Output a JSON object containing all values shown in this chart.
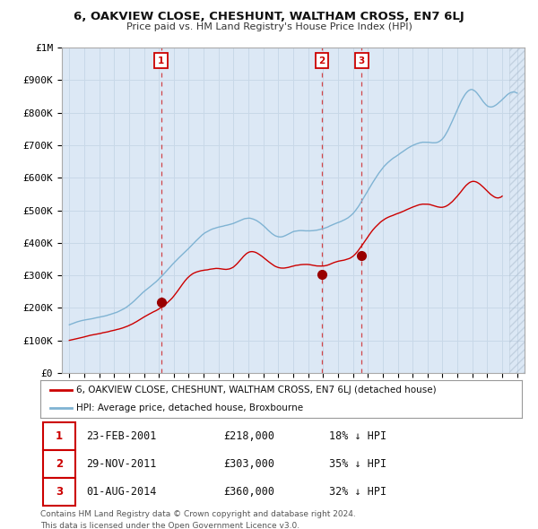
{
  "title": "6, OAKVIEW CLOSE, CHESHUNT, WALTHAM CROSS, EN7 6LJ",
  "subtitle": "Price paid vs. HM Land Registry's House Price Index (HPI)",
  "legend_line1": "6, OAKVIEW CLOSE, CHESHUNT, WALTHAM CROSS, EN7 6LJ (detached house)",
  "legend_line2": "HPI: Average price, detached house, Broxbourne",
  "footer1": "Contains HM Land Registry data © Crown copyright and database right 2024.",
  "footer2": "This data is licensed under the Open Government Licence v3.0.",
  "transactions": [
    {
      "num": 1,
      "date": "23-FEB-2001",
      "price": "£218,000",
      "hpi": "18% ↓ HPI",
      "x": 2001.14
    },
    {
      "num": 2,
      "date": "29-NOV-2011",
      "price": "£303,000",
      "hpi": "35% ↓ HPI",
      "x": 2011.91
    },
    {
      "num": 3,
      "date": "01-AUG-2014",
      "price": "£360,000",
      "hpi": "32% ↓ HPI",
      "x": 2014.58
    }
  ],
  "transaction_prices": [
    218000,
    303000,
    360000
  ],
  "hpi_annual": [
    1995,
    1996,
    1997,
    1998,
    1999,
    2000,
    2001,
    2002,
    2003,
    2004,
    2005,
    2006,
    2007,
    2008,
    2009,
    2010,
    2011,
    2012,
    2013,
    2014,
    2015,
    2016,
    2017,
    2018,
    2019,
    2020,
    2021,
    2022,
    2023,
    2024,
    2025
  ],
  "hpi_annual_vals": [
    148000,
    162000,
    172000,
    185000,
    210000,
    252000,
    290000,
    340000,
    385000,
    430000,
    450000,
    462000,
    478000,
    455000,
    420000,
    435000,
    438000,
    445000,
    462000,
    490000,
    560000,
    630000,
    670000,
    700000,
    710000,
    720000,
    810000,
    870000,
    820000,
    840000,
    860000
  ],
  "red_annual": [
    1995,
    1996,
    1997,
    1998,
    1999,
    2000,
    2001,
    2002,
    2003,
    2004,
    2005,
    2006,
    2007,
    2008,
    2009,
    2010,
    2011,
    2012,
    2013,
    2014,
    2015,
    2016,
    2017,
    2018,
    2019,
    2020,
    2021,
    2022,
    2023,
    2024
  ],
  "red_annual_vals": [
    100000,
    110000,
    120000,
    130000,
    145000,
    170000,
    195000,
    235000,
    295000,
    315000,
    320000,
    325000,
    370000,
    355000,
    325000,
    330000,
    335000,
    330000,
    345000,
    360000,
    420000,
    470000,
    490000,
    510000,
    520000,
    510000,
    545000,
    590000,
    560000,
    545000
  ],
  "xlim": [
    1994.5,
    2025.5
  ],
  "ylim": [
    0,
    1000000
  ],
  "red_color": "#cc0000",
  "blue_color": "#7fb3d3",
  "bg_fill_color": "#dce8f5",
  "grid_color": "#c8d8e8",
  "hatch_color": "#bbccdd"
}
